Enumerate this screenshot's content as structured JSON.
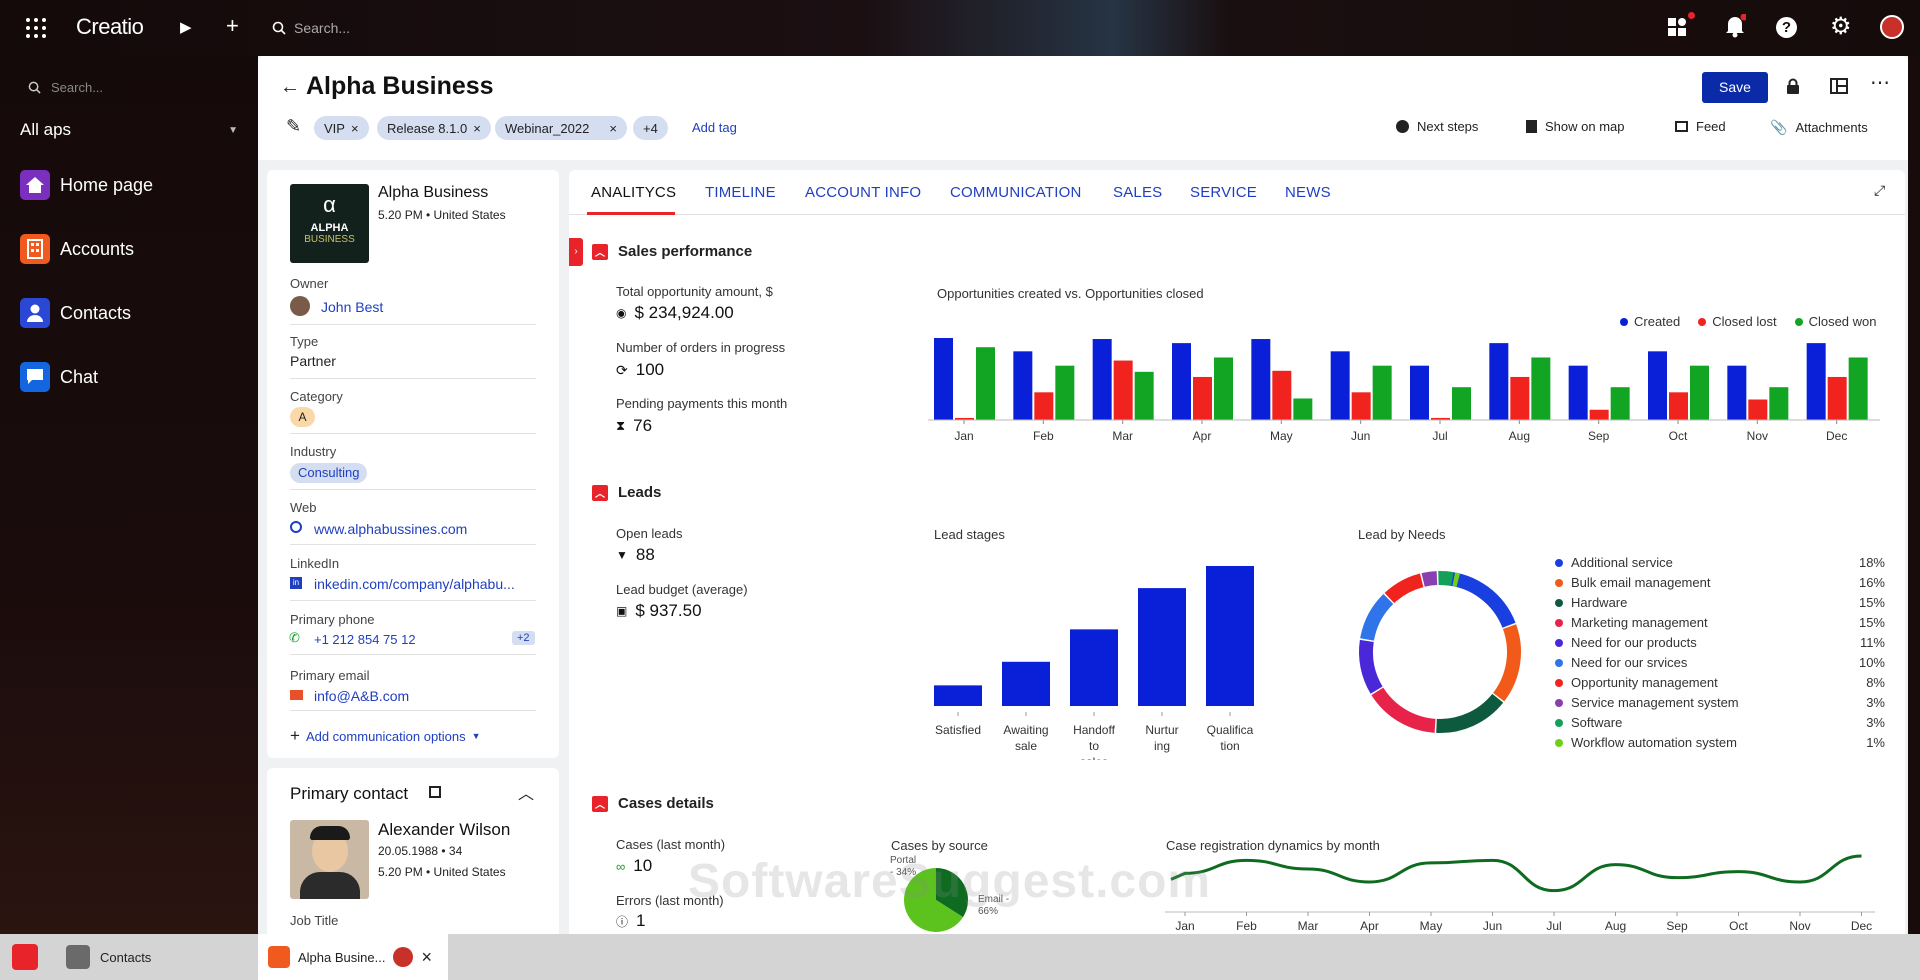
{
  "topbar": {
    "brand": "Creatio",
    "search_placeholder": "Search..."
  },
  "sidebar": {
    "search_placeholder": "Search...",
    "section": "All aps",
    "items": [
      {
        "label": "Home page",
        "color": "#7b2fbf"
      },
      {
        "label": "Accounts",
        "color": "#f05a1e"
      },
      {
        "label": "Contacts",
        "color": "#2a47d6"
      },
      {
        "label": "Chat",
        "color": "#1466e0"
      }
    ]
  },
  "header": {
    "title": "Alpha Business",
    "save": "Save",
    "tags": [
      "VIP",
      "Release 8.1.0",
      "Webinar_2022"
    ],
    "more_tags": "+4",
    "add_tag": "Add tag",
    "actions": [
      "Next steps",
      "Show on map",
      "Feed",
      "Attachments"
    ]
  },
  "account": {
    "logo_text": "ALPHA",
    "logo_sub": "BUSINESS",
    "logo_mark": "α",
    "name": "Alpha Business",
    "meta": "5.20 PM • United States",
    "owner_label": "Owner",
    "owner": "John Best",
    "type_label": "Type",
    "type": "Partner",
    "category_label": "Category",
    "category": "A",
    "industry_label": "Industry",
    "industry": "Consulting",
    "web_label": "Web",
    "web": "www.alphabussines.com",
    "linkedin_label": "LinkedIn",
    "linkedin": "inkedin.com/company/alphabu...",
    "phone_label": "Primary phone",
    "phone": "+1 212 854 75 12",
    "phone_more": "+2",
    "email_label": "Primary email",
    "email": "info@A&B.com",
    "add_comm": "Add communication options"
  },
  "contact": {
    "title": "Primary contact",
    "name": "Alexander Wilson",
    "dob": "20.05.1988 • 34",
    "meta": "5.20 PM • United States",
    "job_label": "Job Title"
  },
  "tabs": [
    "ANALITYCS",
    "TIMELINE",
    "ACCOUNT INFO",
    "COMMUNICATION",
    "SALES",
    "SERVICE",
    "NEWS"
  ],
  "sales": {
    "title": "Sales performance",
    "m1_label": "Total opportunity amount, $",
    "m1": "$ 234,924.00",
    "m2_label": "Number of orders in progress",
    "m2": "100",
    "m3_label": "Pending payments this month",
    "m3": "76"
  },
  "leads": {
    "title": "Leads",
    "m1_label": "Open leads",
    "m1": "88",
    "m2_label": "Lead budget (average)",
    "m2": "$ 937.50"
  },
  "cases": {
    "title": "Cases details",
    "m1_label": "Cases (last month)",
    "m1": "10",
    "m2_label": "Errors (last month)",
    "m2": "1"
  },
  "watermark": "SoftwareSuggest.com",
  "taskbar": {
    "items": [
      "Contacts",
      "Alpha Busine..."
    ]
  },
  "chart_data": [
    {
      "type": "bar",
      "title": "Opportunities created vs. Opportunities closed",
      "legend_position": "top-right",
      "categories": [
        "Jan",
        "Feb",
        "Mar",
        "Apr",
        "May",
        "Jun",
        "Jul",
        "Aug",
        "Sep",
        "Oct",
        "Nov",
        "Dec"
      ],
      "series": [
        {
          "name": "Created",
          "color": "#0a1fd8",
          "values": [
            80,
            67,
            79,
            75,
            79,
            67,
            53,
            75,
            53,
            67,
            53,
            75
          ]
        },
        {
          "name": "Closed lost",
          "color": "#f0231e",
          "values": [
            2,
            27,
            58,
            42,
            48,
            27,
            2,
            42,
            10,
            27,
            20,
            42
          ]
        },
        {
          "name": "Closed won",
          "color": "#12a524",
          "values": [
            71,
            53,
            47,
            61,
            21,
            53,
            32,
            61,
            32,
            53,
            32,
            61
          ]
        }
      ],
      "ylim": [
        0,
        80
      ]
    },
    {
      "type": "bar",
      "title": "Lead stages",
      "categories": [
        "Satisfied",
        "Awaiting sale",
        "Handoff to sales",
        "Nurtur ing",
        "Qualifica tion"
      ],
      "values": [
        14,
        30,
        52,
        80,
        95
      ],
      "ylim": [
        0,
        95
      ],
      "color": "#0a1fd8"
    },
    {
      "type": "pie",
      "title": "Lead by Needs",
      "labels": [
        "Additional service",
        "Bulk email management",
        "Hardware",
        "Marketing management",
        "Need for our products",
        "Need for our srvices",
        "Opportunity management",
        "Service management system",
        "Software",
        "Workflow automation system"
      ],
      "values": [
        18,
        16,
        15,
        15,
        11,
        10,
        8,
        3,
        3,
        1
      ],
      "colors": [
        "#1a3fe0",
        "#f25a1a",
        "#0e5a3f",
        "#e8234a",
        "#4a28d8",
        "#2f74e8",
        "#f0231e",
        "#8a3fb0",
        "#13a05a",
        "#6fcf1a"
      ]
    },
    {
      "type": "pie",
      "title": "Cases by source",
      "labels": [
        "Portal - 34%",
        "Email - 66%"
      ],
      "values": [
        34,
        66
      ],
      "colors": [
        "#0e6b20",
        "#5cc21e"
      ]
    },
    {
      "type": "line",
      "title": "Case registration dynamics by month",
      "categories": [
        "Jan",
        "Feb",
        "Mar",
        "Apr",
        "May",
        "Jun",
        "Jul",
        "Aug",
        "Sep",
        "Oct",
        "Nov",
        "Dec"
      ],
      "values": [
        40,
        55,
        45,
        30,
        52,
        55,
        20,
        50,
        35,
        42,
        30,
        60
      ],
      "color": "#0e6b20"
    }
  ]
}
